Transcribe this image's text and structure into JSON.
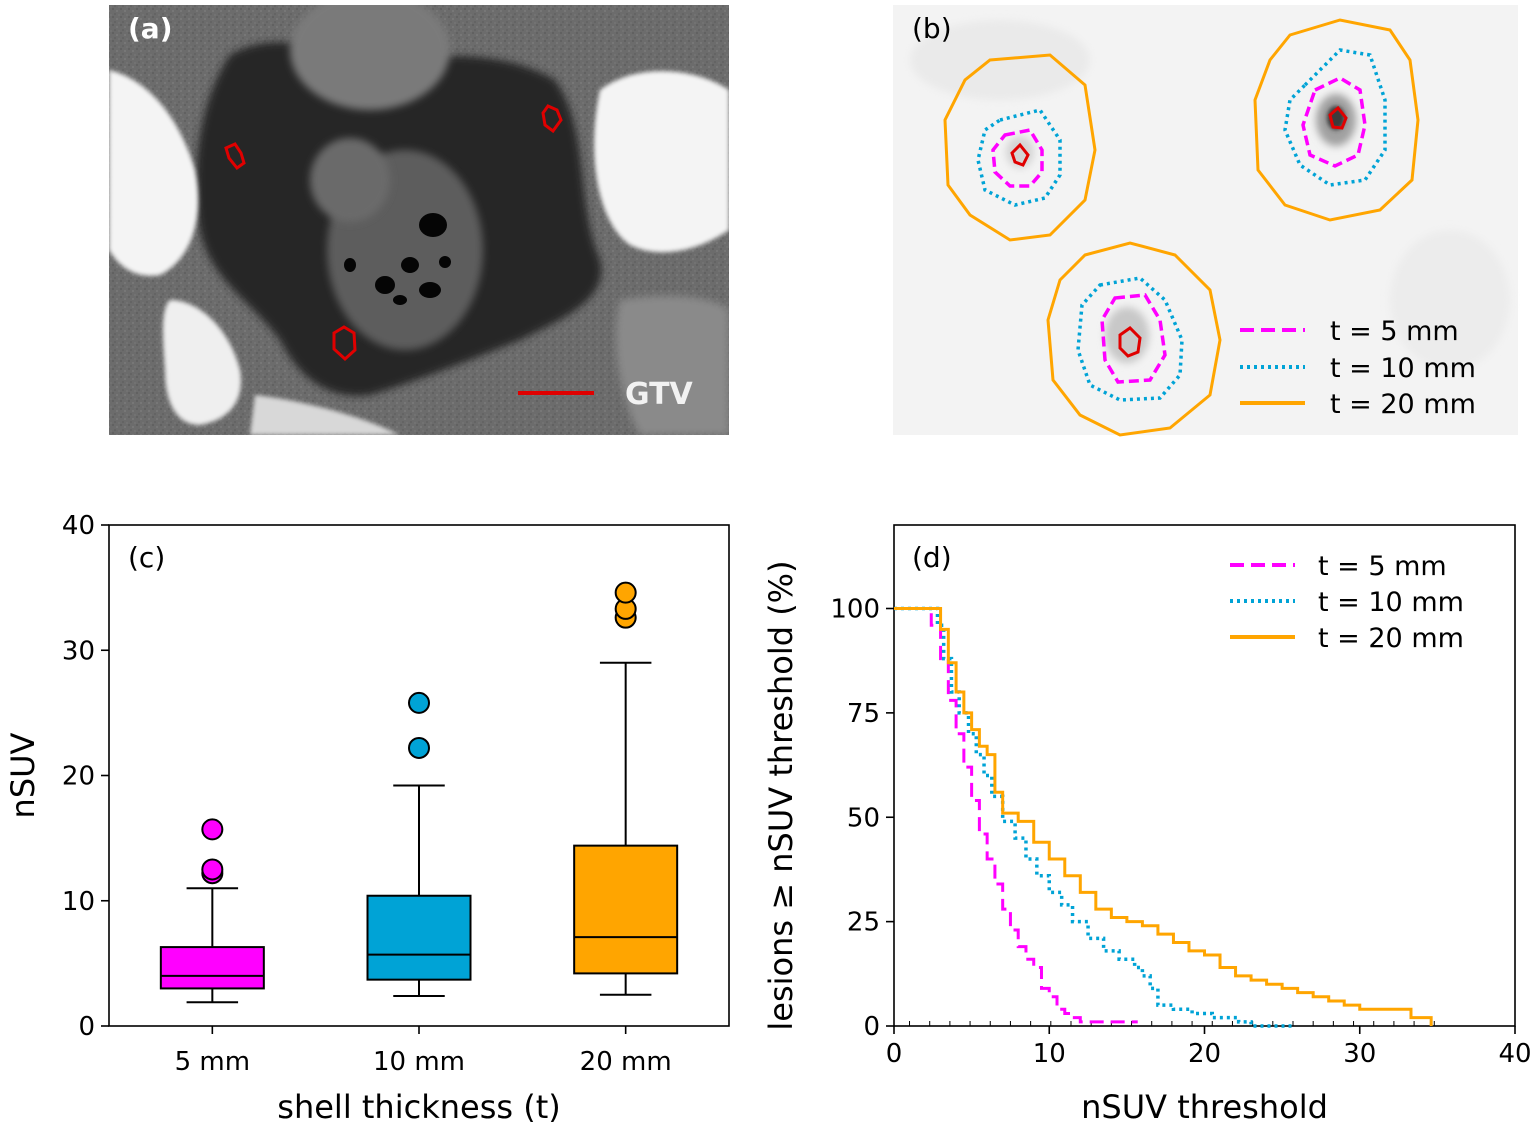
{
  "panels": {
    "a": {
      "label": "(a)",
      "legend_label": "GTV",
      "colors": {
        "gtv": "#e00000"
      }
    },
    "b": {
      "label": "(b)",
      "legend": [
        "t = 5 mm",
        "t = 10 mm",
        "t = 20 mm"
      ]
    }
  },
  "chart_data": [
    {
      "type": "box",
      "panel_label": "(c)",
      "xlabel": "shell thickness (t)",
      "ylabel": "nSUV",
      "ylim": [
        0,
        40
      ],
      "yticks": [
        "0",
        "10",
        "20",
        "30",
        "40"
      ],
      "categories": [
        "5 mm",
        "10 mm",
        "20 mm"
      ],
      "colors": [
        "#ff00ff",
        "#00a3d6",
        "#ffa500"
      ],
      "boxes": [
        {
          "whislo": 1.9,
          "q1": 3.0,
          "median": 4.0,
          "q3": 6.3,
          "whishi": 11.0,
          "fliers": [
            12.2,
            12.5,
            15.7
          ]
        },
        {
          "whislo": 2.4,
          "q1": 3.7,
          "median": 5.7,
          "q3": 10.4,
          "whishi": 19.2,
          "fliers": [
            22.2,
            25.8
          ]
        },
        {
          "whislo": 2.5,
          "q1": 4.2,
          "median": 7.1,
          "q3": 14.4,
          "whishi": 29.0,
          "fliers": [
            32.6,
            33.3,
            34.6
          ]
        }
      ]
    },
    {
      "type": "line",
      "panel_label": "(d)",
      "xlabel": "nSUV threshold",
      "ylabel": "lesions ≥ nSUV threshold (%)",
      "xlim": [
        0,
        40
      ],
      "ylim": [
        0,
        120
      ],
      "xticks": [
        "0",
        "10",
        "20",
        "30",
        "40"
      ],
      "yticks": [
        "0",
        "25",
        "50",
        "75",
        "100"
      ],
      "series": [
        {
          "name": "t = 5 mm",
          "color": "#ff00ff",
          "style": "dashed",
          "x": [
            0,
            1.9,
            2.4,
            3.0,
            3.5,
            4.0,
            4.5,
            5.0,
            5.5,
            6.0,
            6.5,
            7.0,
            7.5,
            8.0,
            8.5,
            9.0,
            9.5,
            10.0,
            10.5,
            11.0,
            11.5,
            12.0,
            13.0,
            14.0,
            15.7
          ],
          "y": [
            100,
            100,
            96,
            88,
            78,
            70,
            62,
            54,
            46,
            40,
            34,
            28,
            23,
            19,
            16,
            14,
            9,
            7,
            4,
            3,
            2,
            1,
            1,
            1,
            1
          ]
        },
        {
          "name": "t = 10 mm",
          "color": "#00a3d6",
          "style": "dotted",
          "x": [
            0,
            2.4,
            2.8,
            3.2,
            3.7,
            4.2,
            4.8,
            5.3,
            5.8,
            6.3,
            7.0,
            7.8,
            8.5,
            9.2,
            10.0,
            10.8,
            11.5,
            12.5,
            13.5,
            14.5,
            15.5,
            16.0,
            16.5,
            17.0,
            18.0,
            19.2,
            20.5,
            22.2,
            23.0,
            25.8
          ],
          "y": [
            100,
            100,
            96,
            88,
            80,
            75,
            70,
            65,
            60,
            55,
            49,
            45,
            40,
            36,
            32,
            29,
            25,
            21,
            18,
            16,
            14,
            12,
            9,
            5,
            4,
            3,
            2,
            1,
            0,
            0
          ]
        },
        {
          "name": "t = 20 mm",
          "color": "#ffa500",
          "style": "solid",
          "x": [
            0,
            2.5,
            3.0,
            3.5,
            4.0,
            4.5,
            5.0,
            5.5,
            6.0,
            6.5,
            7.0,
            8.0,
            9.0,
            10.0,
            11.0,
            12.0,
            13.0,
            14.0,
            15.0,
            16.0,
            17.0,
            18.0,
            19.0,
            20.0,
            21.0,
            22.0,
            23.0,
            24.0,
            25.0,
            26.0,
            27.0,
            28.0,
            29.0,
            30.0,
            31.0,
            32.6,
            33.3,
            34.6
          ],
          "y": [
            100,
            100,
            95,
            87,
            80,
            75,
            71,
            67,
            65,
            56,
            51,
            49,
            44,
            40,
            36,
            32,
            28,
            26,
            25,
            24,
            22,
            20,
            18,
            17,
            14,
            12,
            11,
            10,
            9,
            8,
            7,
            6,
            5,
            4,
            4,
            4,
            2,
            0
          ]
        }
      ]
    }
  ]
}
